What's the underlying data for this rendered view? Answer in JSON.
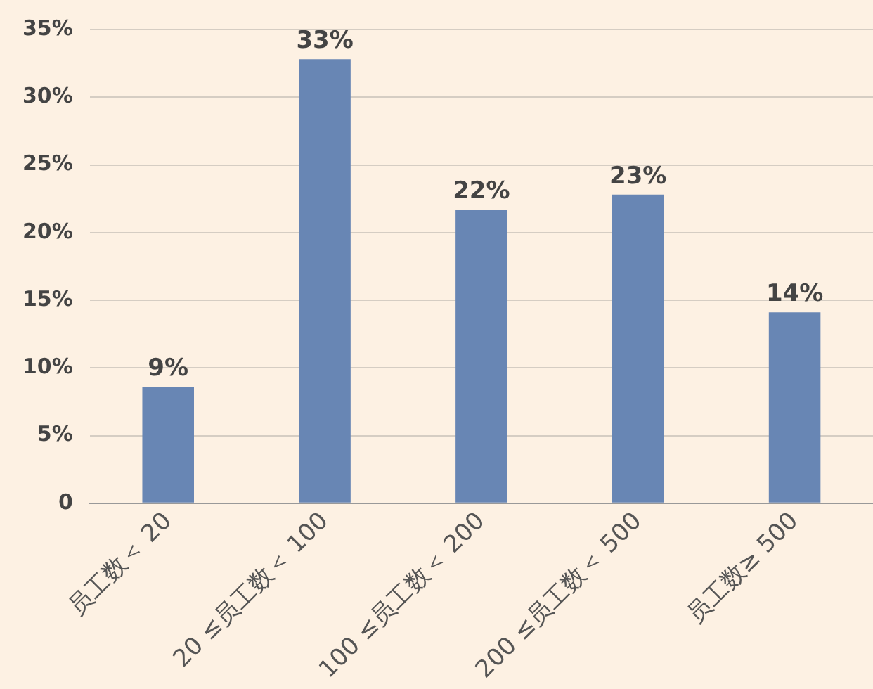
{
  "chart_data": {
    "type": "bar",
    "categories": [
      "员工数＜ 20",
      "20 ≤员工数＜ 100",
      "100 ≤员工数＜ 200",
      "200 ≤员工数＜ 500",
      "员工数≥ 500"
    ],
    "values": [
      8.6,
      32.8,
      21.7,
      22.8,
      14.1
    ],
    "value_labels": [
      "9%",
      "33%",
      "22%",
      "23%",
      "14%"
    ],
    "color": "#6886b4",
    "ylim": [
      0,
      35
    ],
    "yticks": [
      {
        "value": 0,
        "label": "0"
      },
      {
        "value": 5,
        "label": "5%"
      },
      {
        "value": 10,
        "label": "10%"
      },
      {
        "value": 15,
        "label": "15%"
      },
      {
        "value": 20,
        "label": "20%"
      },
      {
        "value": 25,
        "label": "25%"
      },
      {
        "value": 30,
        "label": "30%"
      },
      {
        "value": 35,
        "label": "35%"
      }
    ],
    "grid": "y",
    "legend": false
  }
}
